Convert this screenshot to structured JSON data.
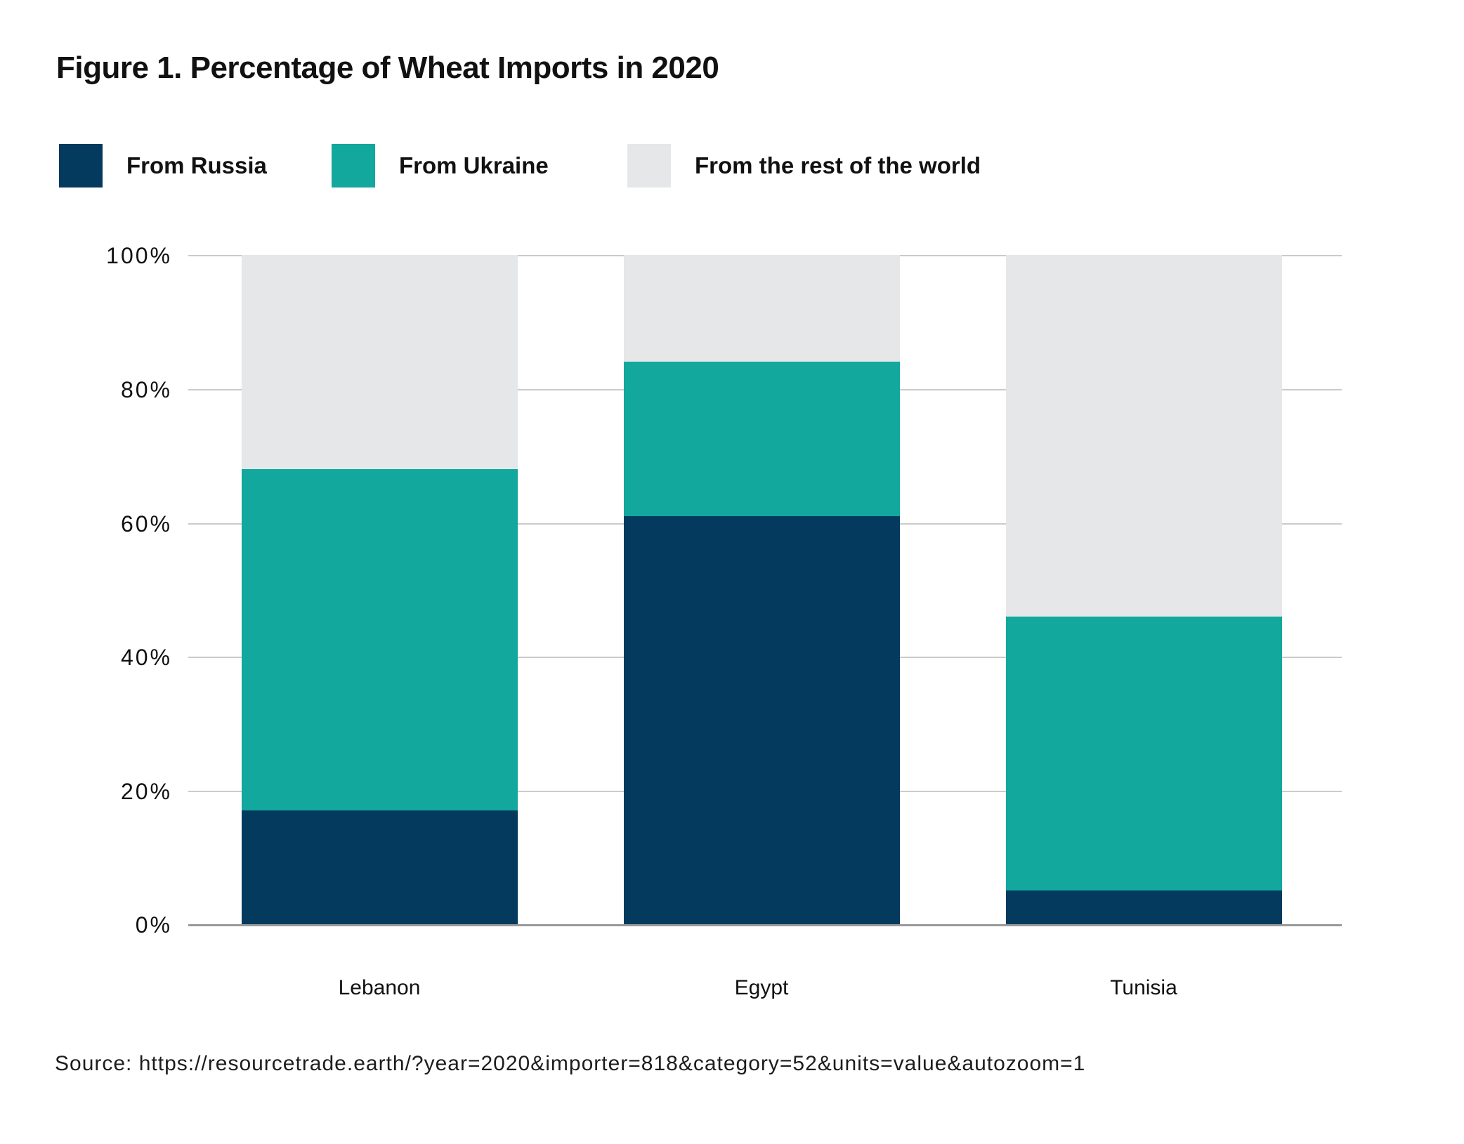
{
  "figure": {
    "title": "Figure 1. Percentage of Wheat Imports in 2020",
    "source": "Source: https://resourcetrade.earth/?year=2020&importer=818&category=52&units=value&autozoom=1"
  },
  "colors": {
    "russia": "#053A5F",
    "ukraine": "#12A89D",
    "rest_of_world": "#E6E7E8",
    "gridline": "#CBCBCB",
    "axis_baseline": "#999999",
    "text": "#111111",
    "background": "#FFFFFF"
  },
  "legend": {
    "items": [
      {
        "label": "From Russia",
        "color": "#053A5F"
      },
      {
        "label": "From Ukraine",
        "color": "#12A89D"
      },
      {
        "label": "From the rest of the world",
        "color": "#E6E7E8"
      }
    ]
  },
  "chart_data": {
    "type": "bar",
    "stacked": true,
    "title": "Figure 1. Percentage of Wheat Imports in 2020",
    "categories": [
      "Lebanon",
      "Egypt",
      "Tunisia"
    ],
    "series": [
      {
        "name": "From Russia",
        "color": "#053A5F",
        "values": [
          17,
          61,
          5
        ]
      },
      {
        "name": "From Ukraine",
        "color": "#12A89D",
        "values": [
          51,
          23,
          41
        ]
      },
      {
        "name": "From the rest of the world",
        "color": "#E6E7E8",
        "values": [
          32,
          16,
          54
        ]
      }
    ],
    "yticks": [
      "100%",
      "80%",
      "60%",
      "40%",
      "20%",
      "0%"
    ],
    "ytick_values": [
      100,
      80,
      60,
      40,
      20,
      0
    ],
    "ylim": [
      0,
      100
    ],
    "xlabel": "",
    "ylabel": "",
    "grid": true,
    "legend_position": "top-left"
  }
}
